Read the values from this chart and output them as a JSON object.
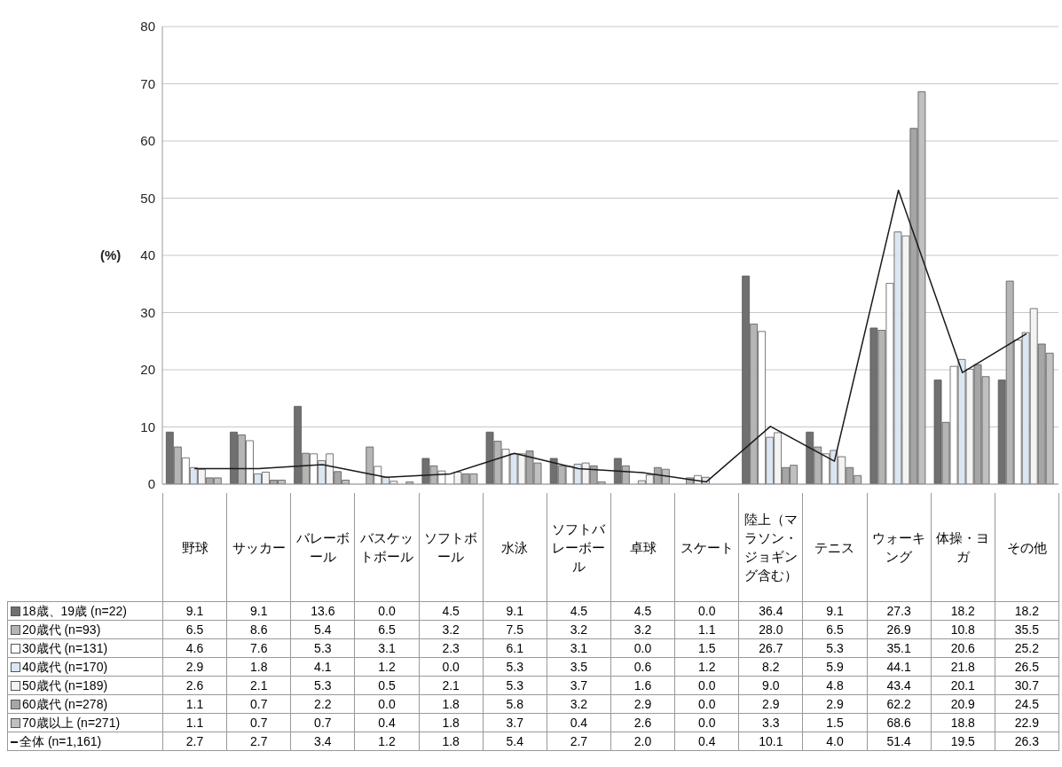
{
  "chart_data": {
    "type": "bar",
    "ylabel": "(%)",
    "categories": [
      "野球",
      "サッカー",
      "バレーボール",
      "バスケットボール",
      "ソフトボール",
      "水泳",
      "ソフトバレーボール",
      "卓球",
      "スケート",
      "陸上（マラソン・ジョギング含む）",
      "テニス",
      "ウォーキング",
      "体操・ヨガ",
      "その他"
    ],
    "series": [
      {
        "name": "18歳、19歳 (n=22)",
        "color": "#707070",
        "values": [
          9.1,
          9.1,
          13.6,
          0.0,
          4.5,
          9.1,
          4.5,
          4.5,
          0.0,
          36.4,
          9.1,
          27.3,
          18.2,
          18.2
        ],
        "value_labels": [
          "9.1",
          "9.1",
          "13.6",
          "0.0",
          "4.5",
          "9.1",
          "4.5",
          "4.5",
          "0.0",
          "36.4",
          "9.1",
          "27.3",
          "18.2",
          "18.2"
        ]
      },
      {
        "name": "20歳代 (n=93)",
        "color": "#b5b5b5",
        "values": [
          6.5,
          8.6,
          5.4,
          6.5,
          3.2,
          7.5,
          3.2,
          3.2,
          1.1,
          28.0,
          6.5,
          26.9,
          10.8,
          35.5
        ],
        "value_labels": [
          "6.5",
          "8.6",
          "5.4",
          "6.5",
          "3.2",
          "7.5",
          "3.2",
          "3.2",
          "1.1",
          "28.0",
          "6.5",
          "26.9",
          "10.8",
          "35.5"
        ]
      },
      {
        "name": "30歳代 (n=131)",
        "color": "#ffffff",
        "values": [
          4.6,
          7.6,
          5.3,
          3.1,
          2.3,
          6.1,
          3.1,
          0.0,
          1.5,
          26.7,
          5.3,
          35.1,
          20.6,
          25.2
        ],
        "value_labels": [
          "4.6",
          "7.6",
          "5.3",
          "3.1",
          "2.3",
          "6.1",
          "3.1",
          "0.0",
          "1.5",
          "26.7",
          "5.3",
          "35.1",
          "20.6",
          "25.2"
        ]
      },
      {
        "name": "40歳代 (n=170)",
        "color": "#dce6f2",
        "values": [
          2.9,
          1.8,
          4.1,
          1.2,
          0.0,
          5.3,
          3.5,
          0.6,
          1.2,
          8.2,
          5.9,
          44.1,
          21.8,
          26.5
        ],
        "value_labels": [
          "2.9",
          "1.8",
          "4.1",
          "1.2",
          "0.0",
          "5.3",
          "3.5",
          "0.6",
          "1.2",
          "8.2",
          "5.9",
          "44.1",
          "21.8",
          "26.5"
        ]
      },
      {
        "name": "50歳代 (n=189)",
        "color": "#f4f4f4",
        "values": [
          2.6,
          2.1,
          5.3,
          0.5,
          2.1,
          5.3,
          3.7,
          1.6,
          0.0,
          9.0,
          4.8,
          43.4,
          20.1,
          30.7
        ],
        "value_labels": [
          "2.6",
          "2.1",
          "5.3",
          "0.5",
          "2.1",
          "5.3",
          "3.7",
          "1.6",
          "0.0",
          "9.0",
          "4.8",
          "43.4",
          "20.1",
          "30.7"
        ]
      },
      {
        "name": "60歳代 (n=278)",
        "color": "#a6a6a6",
        "values": [
          1.1,
          0.7,
          2.2,
          0.0,
          1.8,
          5.8,
          3.2,
          2.9,
          0.0,
          2.9,
          2.9,
          62.2,
          20.9,
          24.5
        ],
        "value_labels": [
          "1.1",
          "0.7",
          "2.2",
          "0.0",
          "1.8",
          "5.8",
          "3.2",
          "2.9",
          "0.0",
          "2.9",
          "2.9",
          "62.2",
          "20.9",
          "24.5"
        ]
      },
      {
        "name": "70歳以上 (n=271)",
        "color": "#c0c0c0",
        "values": [
          1.1,
          0.7,
          0.7,
          0.4,
          1.8,
          3.7,
          0.4,
          2.6,
          0.0,
          3.3,
          1.5,
          68.6,
          18.8,
          22.9
        ],
        "value_labels": [
          "1.1",
          "0.7",
          "0.7",
          "0.4",
          "1.8",
          "3.7",
          "0.4",
          "2.6",
          "0.0",
          "3.3",
          "1.5",
          "68.6",
          "18.8",
          "22.9"
        ]
      },
      {
        "name": "全体 (n=1,161)",
        "type": "line",
        "color": "#1a1a1a",
        "values": [
          2.7,
          2.7,
          3.4,
          1.2,
          1.8,
          5.4,
          2.7,
          2.0,
          0.4,
          10.1,
          4.0,
          51.4,
          19.5,
          26.3
        ],
        "value_labels": [
          "2.7",
          "2.7",
          "3.4",
          "1.2",
          "1.8",
          "5.4",
          "2.7",
          "2.0",
          "0.4",
          "10.1",
          "4.0",
          "51.4",
          "19.5",
          "26.3"
        ]
      }
    ],
    "ylim": [
      0,
      80
    ],
    "yticks": [
      0,
      10,
      20,
      30,
      40,
      50,
      60,
      70,
      80
    ],
    "grid": "y",
    "legend": "bottom",
    "marker": "none"
  }
}
